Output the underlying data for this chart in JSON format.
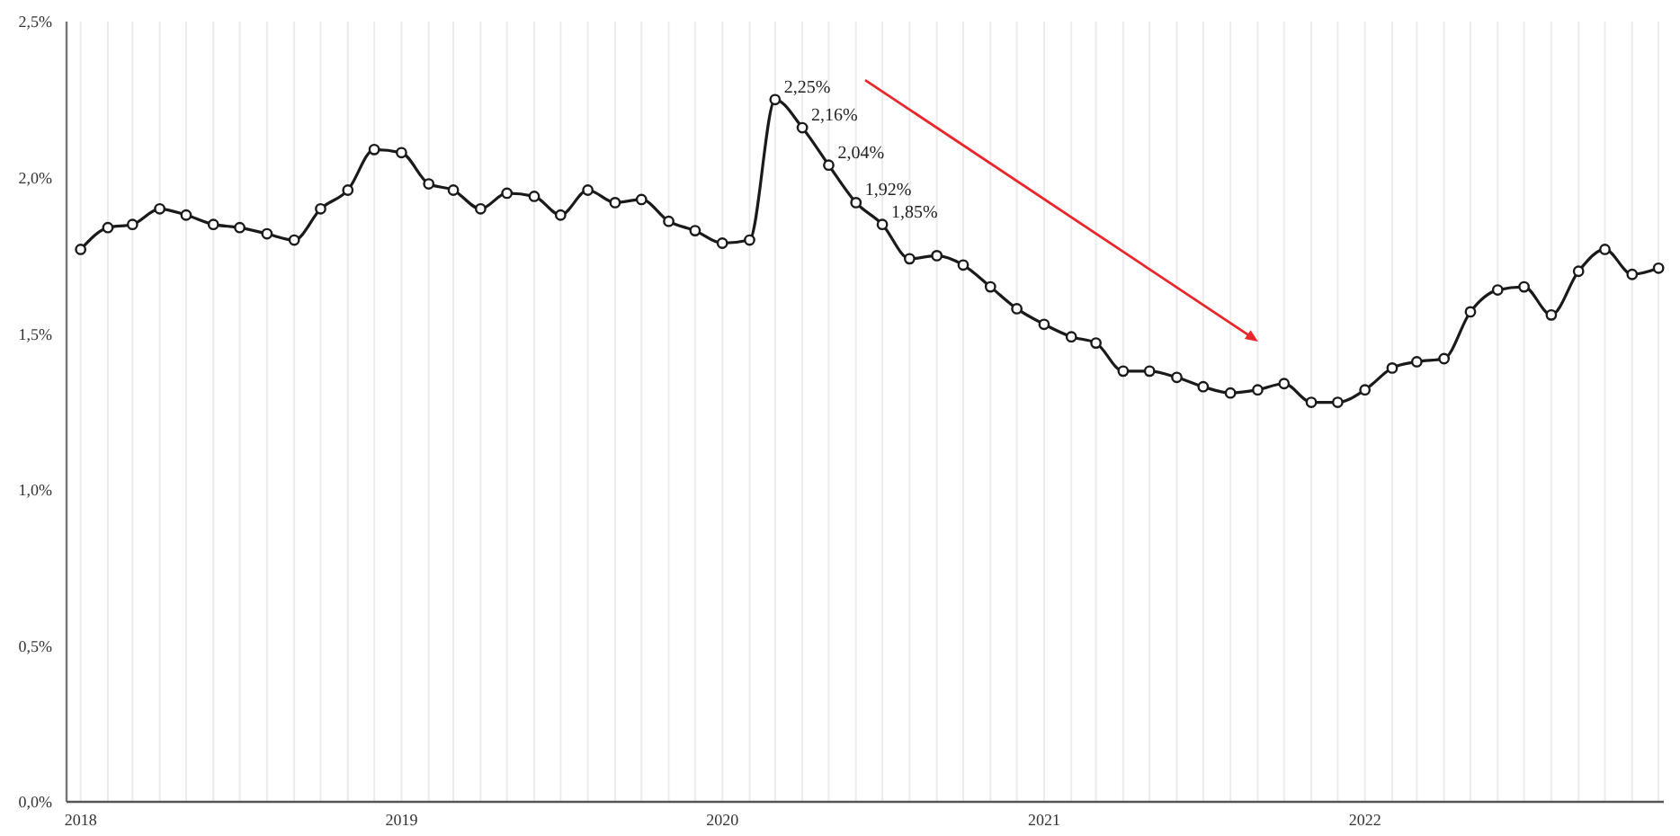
{
  "chart_data": {
    "type": "line",
    "x": [
      "2018-01",
      "2018-02",
      "2018-03",
      "2018-04",
      "2018-05",
      "2018-06",
      "2018-07",
      "2018-08",
      "2018-09",
      "2018-10",
      "2018-11",
      "2018-12",
      "2019-01",
      "2019-02",
      "2019-03",
      "2019-04",
      "2019-05",
      "2019-06",
      "2019-07",
      "2019-08",
      "2019-09",
      "2019-10",
      "2019-11",
      "2019-12",
      "2020-01",
      "2020-02",
      "2020-03",
      "2020-04",
      "2020-05",
      "2020-06",
      "2020-07",
      "2020-08",
      "2020-09",
      "2020-10",
      "2020-11",
      "2020-12",
      "2021-01",
      "2021-02",
      "2021-03",
      "2021-04",
      "2021-05",
      "2021-06",
      "2021-07",
      "2021-08",
      "2021-09",
      "2021-10",
      "2021-11",
      "2021-12",
      "2022-01",
      "2022-02",
      "2022-03",
      "2022-04",
      "2022-05",
      "2022-06",
      "2022-07",
      "2022-08",
      "2022-09",
      "2022-10",
      "2022-11",
      "2022-12"
    ],
    "series": [
      {
        "color": "#1a1a1a",
        "values": [
          1.77,
          1.84,
          1.85,
          1.9,
          1.88,
          1.85,
          1.84,
          1.82,
          1.8,
          1.9,
          1.96,
          2.09,
          2.08,
          1.98,
          1.96,
          1.9,
          1.95,
          1.94,
          1.88,
          1.96,
          1.92,
          1.93,
          1.86,
          1.83,
          1.79,
          1.8,
          2.25,
          2.16,
          2.04,
          1.92,
          1.85,
          1.74,
          1.75,
          1.72,
          1.65,
          1.58,
          1.53,
          1.49,
          1.47,
          1.38,
          1.38,
          1.36,
          1.33,
          1.31,
          1.32,
          1.34,
          1.28,
          1.28,
          1.32,
          1.39,
          1.41,
          1.42,
          1.57,
          1.64,
          1.65,
          1.56,
          1.7,
          1.77,
          1.69,
          1.71
        ],
        "value_labels": [
          null,
          null,
          null,
          null,
          null,
          null,
          null,
          null,
          null,
          null,
          null,
          null,
          null,
          null,
          null,
          null,
          null,
          null,
          null,
          null,
          null,
          null,
          null,
          null,
          null,
          null,
          "2,25%",
          "2,16%",
          "2,04%",
          "1,92%",
          "1,85%",
          null,
          null,
          null,
          null,
          null,
          null,
          null,
          null,
          null,
          null,
          null,
          null,
          null,
          null,
          null,
          null,
          null,
          null,
          null,
          null,
          null,
          null,
          null,
          null,
          null,
          null,
          null,
          null,
          null
        ]
      }
    ],
    "xlim": [
      "2017-12-16",
      "2022-12-07"
    ],
    "xticks": [
      {
        "value": "2018-01",
        "label": "2018"
      },
      {
        "value": "2018-02",
        "label": null
      },
      {
        "value": "2018-03",
        "label": null
      },
      {
        "value": "2018-04",
        "label": null
      },
      {
        "value": "2018-05",
        "label": null
      },
      {
        "value": "2018-06",
        "label": null
      },
      {
        "value": "2018-07",
        "label": null
      },
      {
        "value": "2018-08",
        "label": null
      },
      {
        "value": "2018-09",
        "label": null
      },
      {
        "value": "2018-10",
        "label": null
      },
      {
        "value": "2018-11",
        "label": null
      },
      {
        "value": "2018-12",
        "label": null
      },
      {
        "value": "2019-01",
        "label": "2019"
      },
      {
        "value": "2019-02",
        "label": null
      },
      {
        "value": "2019-03",
        "label": null
      },
      {
        "value": "2019-04",
        "label": null
      },
      {
        "value": "2019-05",
        "label": null
      },
      {
        "value": "2019-06",
        "label": null
      },
      {
        "value": "2019-07",
        "label": null
      },
      {
        "value": "2019-08",
        "label": null
      },
      {
        "value": "2019-09",
        "label": null
      },
      {
        "value": "2019-10",
        "label": null
      },
      {
        "value": "2019-11",
        "label": null
      },
      {
        "value": "2019-12",
        "label": null
      },
      {
        "value": "2020-01",
        "label": "2020"
      },
      {
        "value": "2020-02",
        "label": null
      },
      {
        "value": "2020-03",
        "label": null
      },
      {
        "value": "2020-04",
        "label": null
      },
      {
        "value": "2020-05",
        "label": null
      },
      {
        "value": "2020-06",
        "label": null
      },
      {
        "value": "2020-07",
        "label": null
      },
      {
        "value": "2020-08",
        "label": null
      },
      {
        "value": "2020-09",
        "label": null
      },
      {
        "value": "2020-10",
        "label": null
      },
      {
        "value": "2020-11",
        "label": null
      },
      {
        "value": "2020-12",
        "label": null
      },
      {
        "value": "2021-01",
        "label": "2021"
      },
      {
        "value": "2021-02",
        "label": null
      },
      {
        "value": "2021-03",
        "label": null
      },
      {
        "value": "2021-04",
        "label": null
      },
      {
        "value": "2021-05",
        "label": null
      },
      {
        "value": "2021-06",
        "label": null
      },
      {
        "value": "2021-07",
        "label": null
      },
      {
        "value": "2021-08",
        "label": null
      },
      {
        "value": "2021-09",
        "label": null
      },
      {
        "value": "2021-10",
        "label": null
      },
      {
        "value": "2021-11",
        "label": null
      },
      {
        "value": "2021-12",
        "label": null
      },
      {
        "value": "2022-01",
        "label": "2022"
      },
      {
        "value": "2022-02",
        "label": null
      },
      {
        "value": "2022-03",
        "label": null
      },
      {
        "value": "2022-04",
        "label": null
      },
      {
        "value": "2022-05",
        "label": null
      },
      {
        "value": "2022-06",
        "label": null
      },
      {
        "value": "2022-07",
        "label": null
      },
      {
        "value": "2022-08",
        "label": null
      },
      {
        "value": "2022-09",
        "label": null
      },
      {
        "value": "2022-10",
        "label": null
      },
      {
        "value": "2022-11",
        "label": null
      },
      {
        "value": "2022-12",
        "label": null
      }
    ],
    "ylim": [
      0,
      2.5
    ],
    "yticks": [
      {
        "value": 0,
        "label": "0,0%"
      },
      {
        "value": 0.5,
        "label": "0,5%"
      },
      {
        "value": 1,
        "label": "1,0%"
      },
      {
        "value": 1.5,
        "label": "1,5%"
      },
      {
        "value": 2,
        "label": "2,0%"
      },
      {
        "value": 2.5,
        "label": "2,5%"
      }
    ],
    "grid": "x",
    "marker": "circle",
    "line_style": "solid"
  }
}
